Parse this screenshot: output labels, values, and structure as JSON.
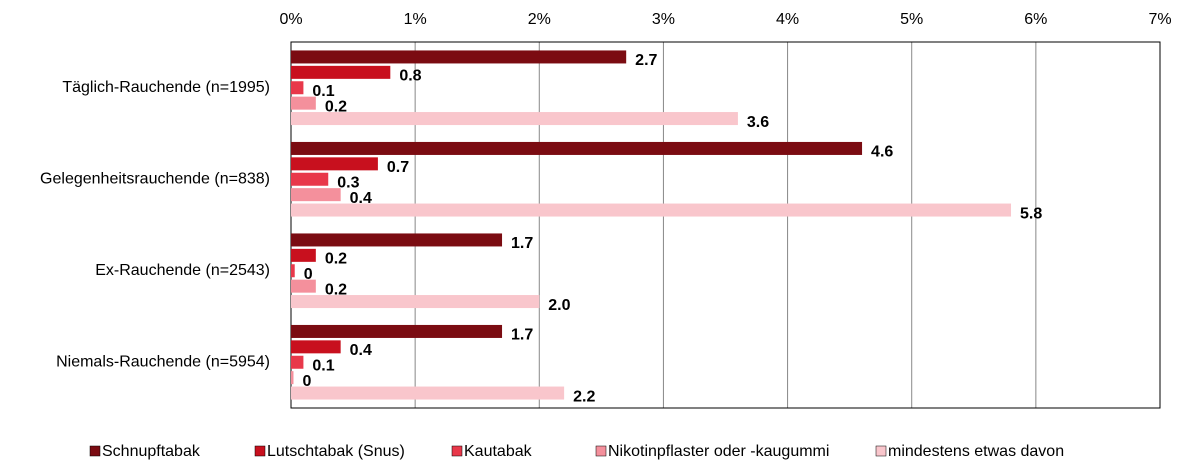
{
  "chart_data": {
    "type": "hbar",
    "categories": [
      "Täglich-Rauchende (n=1995)",
      "Gelegenheitsrauchende  (n=838)",
      "Ex-Rauchende (n=2543)",
      "Niemals-Rauchende (n=5954)"
    ],
    "series": [
      {
        "name": "Schnupftabak",
        "color": "#7b0c12",
        "values": [
          2.7,
          4.6,
          1.7,
          1.7
        ],
        "value_labels": [
          "2.7",
          "4.6",
          "1.7",
          "1.7"
        ]
      },
      {
        "name": "Lutschtabak (Snus)",
        "color": "#c8101e",
        "values": [
          0.8,
          0.7,
          0.2,
          0.4
        ],
        "value_labels": [
          "0.8",
          "0.7",
          "0.2",
          "0.4"
        ]
      },
      {
        "name": "Kautabak",
        "color": "#e8384a",
        "values": [
          0.1,
          0.3,
          0.03,
          0.1
        ],
        "value_labels": [
          "0.1",
          "0.3",
          "0",
          "0.1"
        ]
      },
      {
        "name": "Nikotinpflaster oder -kaugummi",
        "color": "#f4909c",
        "values": [
          0.2,
          0.4,
          0.2,
          0.02
        ],
        "value_labels": [
          "0.2",
          "0.4",
          "0.2",
          "0"
        ]
      },
      {
        "name": "mindestens etwas davon",
        "color": "#f9c6cc",
        "values": [
          3.6,
          5.8,
          2.0,
          2.2
        ],
        "value_labels": [
          "3.6",
          "5.8",
          "2.0",
          "2.2"
        ]
      }
    ],
    "xlim": [
      0,
      7
    ],
    "xticks": [
      {
        "value": 0,
        "label": "0%"
      },
      {
        "value": 1,
        "label": "1%"
      },
      {
        "value": 2,
        "label": "2%"
      },
      {
        "value": 3,
        "label": "3%"
      },
      {
        "value": 4,
        "label": "4%"
      },
      {
        "value": 5,
        "label": "5%"
      },
      {
        "value": 6,
        "label": "6%"
      },
      {
        "value": 7,
        "label": "7%"
      }
    ],
    "grid": true,
    "legend": "bottom"
  }
}
